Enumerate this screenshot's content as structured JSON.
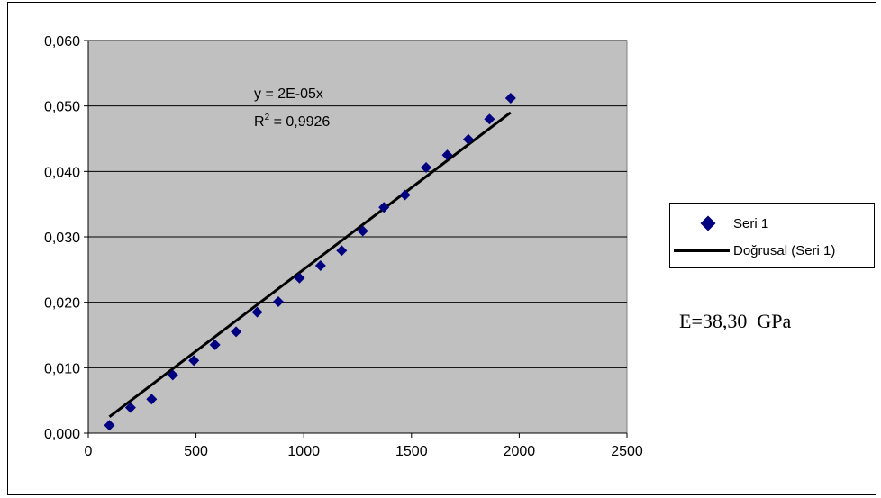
{
  "chart_data": {
    "type": "scatter",
    "title": "",
    "xlabel": "",
    "ylabel": "",
    "xlim": [
      0,
      2500
    ],
    "ylim": [
      0,
      0.06
    ],
    "x_ticks": [
      0,
      500,
      1000,
      1500,
      2000,
      2500
    ],
    "x_tick_labels": [
      "0",
      "500",
      "1000",
      "1500",
      "2000",
      "2500"
    ],
    "y_ticks": [
      0,
      0.01,
      0.02,
      0.03,
      0.04,
      0.05,
      0.06
    ],
    "y_tick_labels": [
      "0,000",
      "0,010",
      "0,020",
      "0,030",
      "0,040",
      "0,050",
      "0,060"
    ],
    "grid": "horizontal",
    "plot_background": "#c0c0c0",
    "series": [
      {
        "name": "Seri 1",
        "marker": "diamond",
        "color": "#000080",
        "x": [
          98,
          196,
          294,
          392,
          490,
          588,
          686,
          784,
          882,
          980,
          1078,
          1176,
          1274,
          1372,
          1470,
          1568,
          1666,
          1764,
          1862,
          1960
        ],
        "y": [
          0.0012,
          0.0039,
          0.0052,
          0.0089,
          0.0111,
          0.0135,
          0.0155,
          0.0185,
          0.0201,
          0.0237,
          0.0256,
          0.0279,
          0.0309,
          0.0345,
          0.0364,
          0.0406,
          0.0425,
          0.0449,
          0.048,
          0.0512
        ]
      },
      {
        "name": "Doğrusal (Seri 1)",
        "type": "trendline",
        "color": "#000000",
        "x": [
          98,
          1960
        ],
        "y": [
          0.0025,
          0.049
        ]
      }
    ],
    "annotations": {
      "equation": "y = 2E-05x",
      "r_squared_prefix": "R",
      "r_squared_exponent": "2",
      "r_squared_value": " = 0,9926"
    },
    "legend": {
      "placement": "right",
      "entries": [
        "Seri 1",
        "Doğrusal (Seri 1)"
      ]
    }
  },
  "note": "E=38,30  GPa"
}
